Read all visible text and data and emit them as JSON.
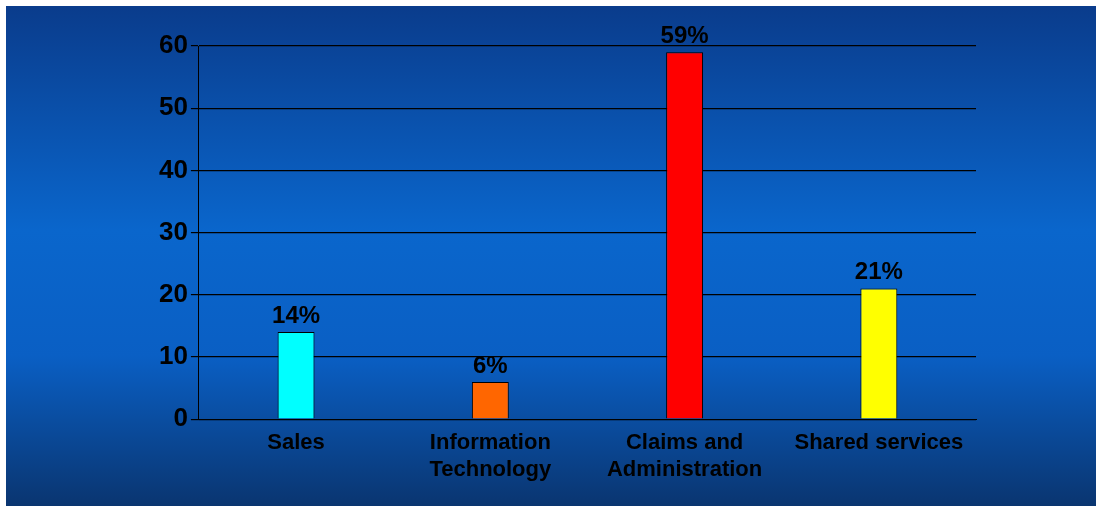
{
  "chart_data": {
    "type": "bar",
    "categories": [
      "Sales",
      "Information Technology",
      "Claims and Administration",
      "Shared services"
    ],
    "values": [
      14,
      6,
      59,
      21
    ],
    "colors": [
      "#00ffff",
      "#ff6600",
      "#ff0000",
      "#ffff00"
    ],
    "value_labels": [
      "14%",
      "6%",
      "59%",
      "21%"
    ],
    "ylim": [
      0,
      60
    ],
    "yticks": [
      0,
      10,
      20,
      30,
      40,
      50,
      60
    ],
    "grid": "y",
    "legend": false
  }
}
